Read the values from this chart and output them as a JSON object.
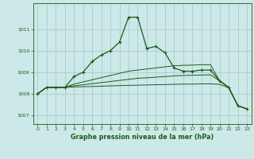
{
  "title": "Graphe pression niveau de la mer (hPa)",
  "bg_color": "#cce8e8",
  "grid_color": "#aacccc",
  "line_color": "#1a5c1a",
  "marker_color": "#1a5c1a",
  "xlim": [
    -0.5,
    23.5
  ],
  "ylim": [
    1006.6,
    1012.2
  ],
  "yticks": [
    1007,
    1008,
    1009,
    1010,
    1011
  ],
  "xticks": [
    0,
    1,
    2,
    3,
    4,
    5,
    6,
    7,
    8,
    9,
    10,
    11,
    12,
    13,
    14,
    15,
    16,
    17,
    18,
    19,
    20,
    21,
    22,
    23
  ],
  "series": [
    {
      "x": [
        0,
        1,
        2,
        3,
        4,
        5,
        6,
        7,
        8,
        9,
        10,
        11,
        12,
        13,
        14,
        15,
        16,
        17,
        18,
        19,
        20,
        21,
        22,
        23
      ],
      "y": [
        1008.0,
        1008.3,
        1008.3,
        1008.3,
        1008.8,
        1009.0,
        1009.5,
        1009.8,
        1010.0,
        1010.4,
        1011.55,
        1011.55,
        1010.1,
        1010.2,
        1009.9,
        1009.2,
        1009.05,
        1009.05,
        1009.1,
        1009.1,
        1008.6,
        1008.3,
        1007.45,
        1007.3
      ]
    },
    {
      "x": [
        0,
        1,
        2,
        3,
        4,
        5,
        6,
        7,
        8,
        9,
        10,
        11,
        12,
        13,
        14,
        15,
        16,
        17,
        18,
        19,
        20,
        21,
        22,
        23
      ],
      "y": [
        1008.0,
        1008.3,
        1008.3,
        1008.3,
        1008.45,
        1008.55,
        1008.65,
        1008.75,
        1008.85,
        1008.95,
        1009.05,
        1009.1,
        1009.15,
        1009.2,
        1009.25,
        1009.3,
        1009.32,
        1009.33,
        1009.35,
        1009.35,
        1008.6,
        1008.3,
        1007.45,
        1007.3
      ]
    },
    {
      "x": [
        0,
        1,
        2,
        3,
        4,
        5,
        6,
        7,
        8,
        9,
        10,
        11,
        12,
        13,
        14,
        15,
        16,
        17,
        18,
        19,
        20,
        21,
        22,
        23
      ],
      "y": [
        1008.0,
        1008.3,
        1008.3,
        1008.3,
        1008.37,
        1008.42,
        1008.47,
        1008.52,
        1008.57,
        1008.62,
        1008.67,
        1008.72,
        1008.74,
        1008.77,
        1008.8,
        1008.83,
        1008.85,
        1008.86,
        1008.87,
        1008.88,
        1008.6,
        1008.3,
        1007.45,
        1007.3
      ]
    },
    {
      "x": [
        0,
        1,
        2,
        3,
        4,
        5,
        6,
        7,
        8,
        9,
        10,
        11,
        12,
        13,
        14,
        15,
        16,
        17,
        18,
        19,
        20,
        21,
        22,
        23
      ],
      "y": [
        1008.0,
        1008.3,
        1008.3,
        1008.3,
        1008.32,
        1008.33,
        1008.34,
        1008.35,
        1008.37,
        1008.38,
        1008.39,
        1008.4,
        1008.41,
        1008.42,
        1008.43,
        1008.44,
        1008.45,
        1008.45,
        1008.46,
        1008.46,
        1008.44,
        1008.28,
        1007.45,
        1007.3
      ]
    }
  ]
}
